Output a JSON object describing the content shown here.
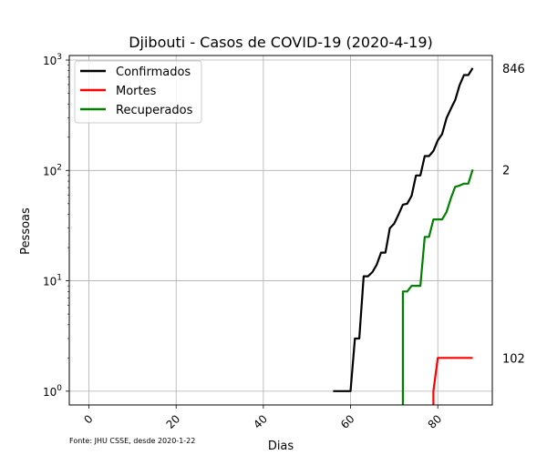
{
  "chart_data": {
    "type": "line",
    "title": "Djibouti - Casos de COVID-19 (2020-4-19)",
    "xlabel": "Dias",
    "ylabel": "Pessoas",
    "yscale": "log",
    "xlim": [
      -4.5,
      92.5
    ],
    "ylim": [
      0.75,
      1100
    ],
    "grid": true,
    "legend_position": "top-left",
    "xticks": [
      0,
      20,
      40,
      60,
      80
    ],
    "xtick_labels": [
      "0",
      "20",
      "40",
      "60",
      "80"
    ],
    "yticks": [
      1,
      10,
      100,
      1000
    ],
    "ytick_labels": [
      {
        "base": "10",
        "exp": "0"
      },
      {
        "base": "10",
        "exp": "1"
      },
      {
        "base": "10",
        "exp": "2"
      },
      {
        "base": "10",
        "exp": "3"
      }
    ],
    "series": [
      {
        "name": "Confirmados",
        "color": "#000000",
        "x": [
          56,
          57,
          58,
          59,
          60,
          61,
          62,
          63,
          64,
          65,
          66,
          67,
          68,
          69,
          70,
          71,
          72,
          73,
          74,
          75,
          76,
          77,
          78,
          79,
          80,
          81,
          82,
          83,
          84,
          85,
          86,
          87,
          88
        ],
        "y": [
          1,
          1,
          1,
          1,
          1,
          3,
          3,
          11,
          11,
          12,
          14,
          18,
          18,
          30,
          33,
          40,
          49,
          50,
          59,
          90,
          90,
          135,
          135,
          150,
          187,
          214,
          298,
          363,
          435,
          591,
          732,
          732,
          846
        ]
      },
      {
        "name": "Mortes",
        "color": "#ff0000",
        "x": [
          79,
          79,
          80,
          81,
          82,
          83,
          84,
          85,
          86,
          87,
          88
        ],
        "y": [
          0.75,
          1,
          2,
          2,
          2,
          2,
          2,
          2,
          2,
          2,
          2
        ]
      },
      {
        "name": "Recuperados",
        "color": "#008000",
        "x": [
          72,
          72,
          73,
          74,
          75,
          76,
          77,
          78,
          79,
          80,
          81,
          82,
          83,
          84,
          85,
          86,
          87,
          88
        ],
        "y": [
          0.75,
          8,
          8,
          9,
          9,
          9,
          25,
          25,
          36,
          36,
          36,
          42,
          56,
          71,
          73,
          76,
          76,
          102
        ]
      }
    ],
    "end_labels": [
      "846",
      "102",
      "2"
    ],
    "source_note": "Fonte: JHU CSSE, desde 2020-1-22"
  }
}
